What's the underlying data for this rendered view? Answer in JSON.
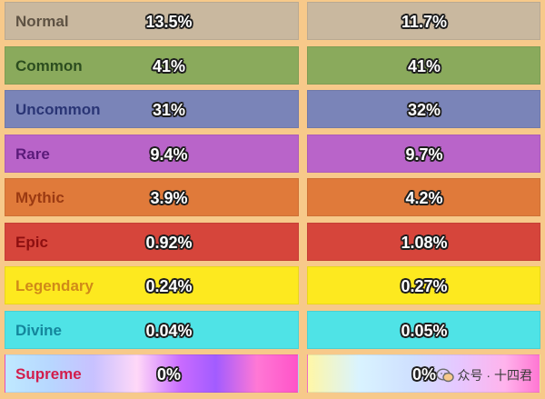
{
  "rows": [
    {
      "name": "Normal",
      "left": "13.5%",
      "right": "11.7%",
      "bg": "#c9b89f",
      "text": "#5e5243"
    },
    {
      "name": "Common",
      "left": "41%",
      "right": "41%",
      "bg": "#8aaa5c",
      "text": "#2c4d1f"
    },
    {
      "name": "Uncommon",
      "left": "31%",
      "right": "32%",
      "bg": "#7a84b8",
      "text": "#2a3575"
    },
    {
      "name": "Rare",
      "left": "9.4%",
      "right": "9.7%",
      "bg": "#b964c9",
      "text": "#5b1b7a"
    },
    {
      "name": "Mythic",
      "left": "3.9%",
      "right": "4.2%",
      "bg": "#e07a3a",
      "text": "#9b3a12"
    },
    {
      "name": "Epic",
      "left": "0.92%",
      "right": "1.08%",
      "bg": "#d6453b",
      "text": "#8e0f10"
    },
    {
      "name": "Legendary",
      "left": "0.24%",
      "right": "0.27%",
      "bg": "#fde91f",
      "text": "#d08a18"
    },
    {
      "name": "Divine",
      "left": "0.04%",
      "right": "0.05%",
      "bg": "#4fe3e6",
      "text": "#14869c"
    },
    {
      "name": "Supreme",
      "left": "0%",
      "right": "0%",
      "bg": "gradient",
      "text": "#d21d4c"
    }
  ],
  "watermark": {
    "text": "众号 · 十四君",
    "icon": "wechat-icon"
  }
}
